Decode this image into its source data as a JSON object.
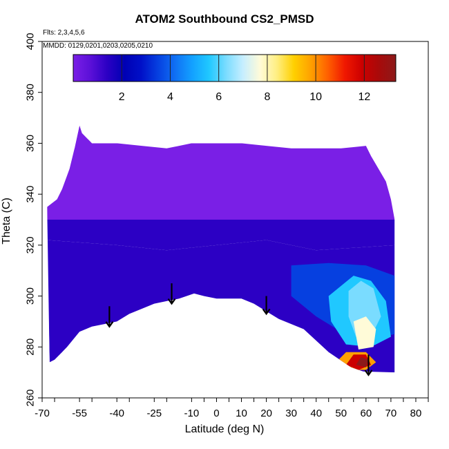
{
  "chart_data": {
    "type": "heatmap",
    "title": "ATOM2 Southbound CS2_PMSD",
    "notes": [
      "Flts: 2,3,4,5,6",
      "MMDD: 0129,0201,0203,0205,0210"
    ],
    "xlabel": "Latitude (deg N)",
    "ylabel": "Theta (C)",
    "xlim": [
      -70,
      85
    ],
    "ylim": [
      260,
      400
    ],
    "x_ticks": [
      -70,
      -65,
      -55,
      -50,
      -40,
      -35,
      -25,
      -20,
      -10,
      -5,
      0,
      5,
      10,
      15,
      20,
      25,
      30,
      35,
      40,
      45,
      50,
      55,
      60,
      65,
      70,
      75,
      80,
      85
    ],
    "x_tick_labels": [
      "-70",
      "",
      "-55",
      "",
      "-40",
      "",
      "-25",
      "",
      "-10",
      "",
      "0",
      "",
      "10",
      "",
      "20",
      "",
      "30",
      "",
      "40",
      "",
      "50",
      "",
      "60",
      "",
      "70",
      "",
      "80",
      ""
    ],
    "y_ticks": [
      260,
      280,
      300,
      320,
      340,
      360,
      380,
      400
    ],
    "colorbar": {
      "range": [
        0,
        13.3
      ],
      "ticks": [
        2,
        4,
        6,
        8,
        10,
        12
      ],
      "colors": [
        "#7a1fe6",
        "#5b10d8",
        "#2c00c4",
        "#0000b4",
        "#0010c8",
        "#0640e0",
        "#1070f4",
        "#13a0ff",
        "#20c8ff",
        "#7adcff",
        "#c6eeff",
        "#fffbd8",
        "#ffee80",
        "#ffd000",
        "#ffa000",
        "#ff6000",
        "#f01800",
        "#cc0000",
        "#a80a0a",
        "#8c1a1a"
      ]
    },
    "data_boundary": {
      "top": [
        [
          -68,
          335
        ],
        [
          -64,
          338
        ],
        [
          -62,
          342
        ],
        [
          -59,
          350
        ],
        [
          -57,
          358
        ],
        [
          -55,
          367
        ],
        [
          -54,
          364
        ],
        [
          -50,
          360
        ],
        [
          -40,
          360
        ],
        [
          -30,
          359
        ],
        [
          -20,
          358
        ],
        [
          -10,
          360
        ],
        [
          0,
          360
        ],
        [
          10,
          360
        ],
        [
          20,
          359
        ],
        [
          30,
          358
        ],
        [
          40,
          358
        ],
        [
          50,
          358
        ],
        [
          60,
          359
        ],
        [
          62,
          355
        ],
        [
          65,
          350
        ],
        [
          68,
          345
        ],
        [
          70,
          338
        ],
        [
          71.5,
          330
        ]
      ],
      "bottom": [
        [
          71.5,
          270
        ],
        [
          68,
          270
        ],
        [
          60,
          270
        ],
        [
          54,
          272
        ],
        [
          45,
          278
        ],
        [
          35,
          287
        ],
        [
          25,
          291
        ],
        [
          20,
          294
        ],
        [
          15,
          297
        ],
        [
          10,
          299
        ],
        [
          5,
          299
        ],
        [
          0,
          299
        ],
        [
          -5,
          300
        ],
        [
          -9,
          301
        ],
        [
          -15,
          299
        ],
        [
          -20,
          298
        ],
        [
          -25,
          297
        ],
        [
          -30,
          295
        ],
        [
          -35,
          293
        ],
        [
          -40,
          290
        ],
        [
          -45,
          289
        ],
        [
          -50,
          288
        ],
        [
          -55,
          286
        ],
        [
          -60,
          280
        ],
        [
          -62,
          278
        ],
        [
          -65,
          275
        ],
        [
          -67,
          274
        ]
      ]
    },
    "field_regions": [
      {
        "value": 0.4,
        "polygon": [
          [
            -68,
            335
          ],
          [
            -57,
            358
          ],
          [
            -55,
            367
          ],
          [
            -50,
            360
          ],
          [
            71.5,
            360
          ],
          [
            71.5,
            330
          ],
          [
            -68,
            330
          ]
        ]
      },
      {
        "value": 1.5,
        "polygon": [
          [
            -68,
            330
          ],
          [
            71.5,
            330
          ],
          [
            71.5,
            320
          ],
          [
            40,
            318
          ],
          [
            20,
            322
          ],
          [
            0,
            320
          ],
          [
            -20,
            318
          ],
          [
            -40,
            320
          ],
          [
            -68,
            322
          ]
        ]
      },
      {
        "value": 1.7,
        "polygon": [
          [
            -68,
            322
          ],
          [
            -40,
            320
          ],
          [
            -20,
            318
          ],
          [
            0,
            320
          ],
          [
            20,
            322
          ],
          [
            40,
            318
          ],
          [
            71.5,
            320
          ],
          [
            71.5,
            270
          ],
          [
            -67,
            274
          ]
        ]
      },
      {
        "value": 3.8,
        "polygon": [
          [
            30,
            312
          ],
          [
            45,
            313
          ],
          [
            60,
            312
          ],
          [
            71.5,
            308
          ],
          [
            71.5,
            285
          ],
          [
            60,
            283
          ],
          [
            50,
            286
          ],
          [
            40,
            292
          ],
          [
            30,
            300
          ]
        ]
      },
      {
        "value": 5.5,
        "polygon": [
          [
            45,
            300
          ],
          [
            55,
            308
          ],
          [
            62,
            306
          ],
          [
            68,
            298
          ],
          [
            70,
            284
          ],
          [
            62,
            280
          ],
          [
            52,
            281
          ],
          [
            46,
            290
          ]
        ]
      },
      {
        "value": 6.6,
        "polygon": [
          [
            53,
            302
          ],
          [
            58,
            306
          ],
          [
            63,
            303
          ],
          [
            66,
            292
          ],
          [
            62,
            284
          ],
          [
            56,
            284
          ],
          [
            53,
            292
          ]
        ]
      },
      {
        "value": 7.8,
        "polygon": [
          [
            55,
            290
          ],
          [
            60,
            292
          ],
          [
            64,
            287
          ],
          [
            63,
            280
          ],
          [
            57,
            279
          ]
        ]
      },
      {
        "value": 9.5,
        "polygon": [
          [
            48,
            274
          ],
          [
            52,
            278
          ],
          [
            60,
            278
          ],
          [
            64,
            274
          ],
          [
            60,
            271
          ],
          [
            52,
            271
          ]
        ]
      },
      {
        "value": 11.5,
        "polygon": [
          [
            52,
            273
          ],
          [
            55,
            277
          ],
          [
            60,
            277
          ],
          [
            62,
            273
          ],
          [
            57,
            271
          ]
        ]
      },
      {
        "value": 13.0,
        "polygon": [
          [
            56,
            273
          ],
          [
            58,
            276
          ],
          [
            61,
            275
          ],
          [
            60,
            272
          ]
        ]
      }
    ],
    "arrows": [
      {
        "x": -43,
        "y_top": 296,
        "y_tip": 288
      },
      {
        "x": -18,
        "y_top": 305,
        "y_tip": 297
      },
      {
        "x": 20,
        "y_top": 300,
        "y_tip": 293
      },
      {
        "x": 61,
        "y_top": 277,
        "y_tip": 269
      }
    ]
  }
}
